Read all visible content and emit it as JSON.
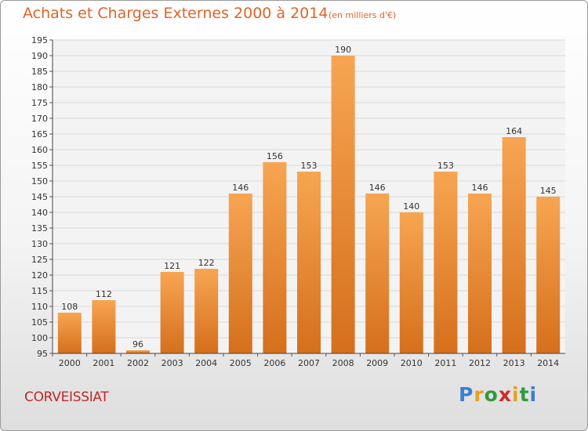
{
  "chart_data": {
    "type": "bar",
    "title": "Achats et Charges Externes 2000 à 2014",
    "subtitle": "(en milliers d'€)",
    "categories": [
      "2000",
      "2001",
      "2002",
      "2003",
      "2004",
      "2005",
      "2006",
      "2007",
      "2008",
      "2009",
      "2010",
      "2011",
      "2012",
      "2013",
      "2014"
    ],
    "values": [
      108,
      112,
      96,
      121,
      122,
      146,
      156,
      153,
      190,
      146,
      140,
      153,
      146,
      164,
      145
    ],
    "ylim": [
      95,
      195
    ],
    "yticks": [
      95,
      100,
      105,
      110,
      115,
      120,
      125,
      130,
      135,
      140,
      145,
      150,
      155,
      160,
      165,
      170,
      175,
      180,
      185,
      190,
      195
    ],
    "grid": true,
    "bar_color": "#f0923e",
    "xlabel": "",
    "ylabel": ""
  },
  "footer": {
    "commune": "CORVEISSIAT"
  },
  "logo": {
    "letters": [
      "P",
      "r",
      "o",
      "x",
      "i",
      "t",
      "i"
    ],
    "colors": [
      "#3a7fd0",
      "#e8a020",
      "#2e9a3c",
      "#d02a2a",
      "#e8a020",
      "#2e9a3c",
      "#3a7fd0"
    ]
  }
}
